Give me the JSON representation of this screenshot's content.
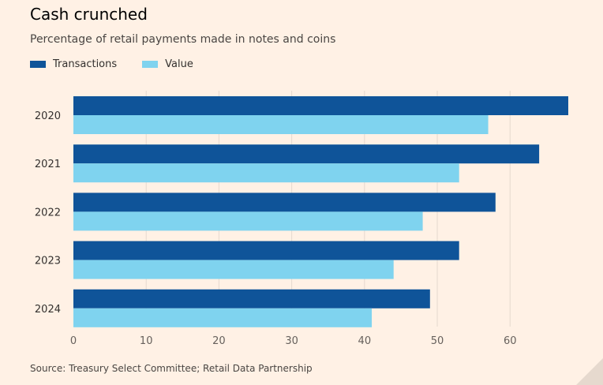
{
  "title": "Cash crunched",
  "subtitle": "Percentage of retail payments made in notes and coins",
  "source": "Source: Treasury Select Committee; Retail Data Partnership",
  "colors": {
    "background": "#fff1e5",
    "transactions": "#0f5499",
    "value": "#7fd3ef",
    "grid": "#e5d9cf",
    "axis_text": "#66605c"
  },
  "chart_data": {
    "type": "bar",
    "orientation": "horizontal",
    "categories": [
      "2020",
      "2021",
      "2022",
      "2023",
      "2024"
    ],
    "series": [
      {
        "name": "Transactions",
        "values": [
          68,
          64,
          58,
          53,
          49
        ]
      },
      {
        "name": "Value",
        "values": [
          57,
          53,
          48,
          44,
          41
        ]
      }
    ],
    "xlim": [
      0,
      68
    ],
    "xticks": [
      0,
      10,
      20,
      30,
      40,
      50,
      60
    ],
    "grid": "vertical",
    "legend": "top-left"
  }
}
